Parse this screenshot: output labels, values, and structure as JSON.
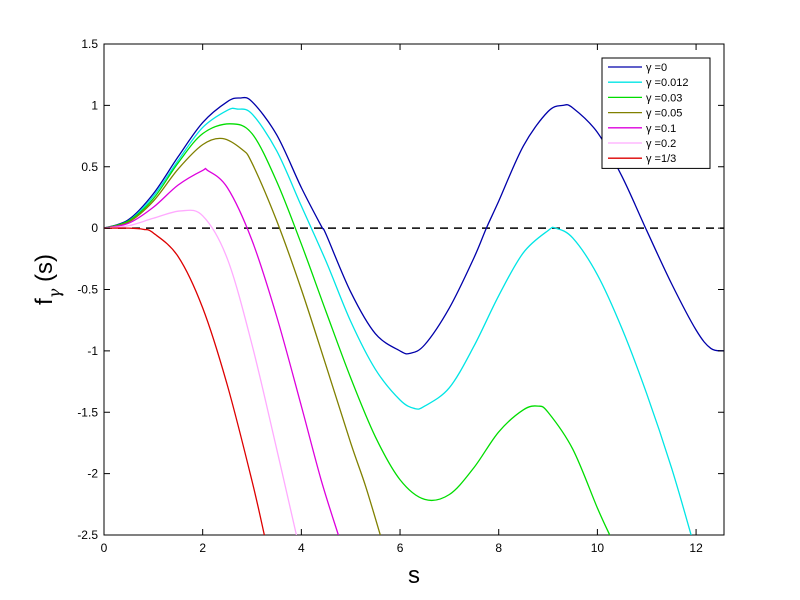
{
  "chart_data": {
    "type": "line",
    "xlabel": "s",
    "ylabel": {
      "main": "f",
      "subscript": "γ",
      "suffix": " (s)"
    },
    "xlim": [
      0,
      12.566
    ],
    "ylim": [
      -2.5,
      1.5
    ],
    "xticks": [
      0,
      2,
      4,
      6,
      8,
      10,
      12
    ],
    "yticks": [
      -2.5,
      -2,
      -1.5,
      -1,
      -0.5,
      0,
      0.5,
      1,
      1.5
    ],
    "xtick_labels": [
      "0",
      "2",
      "4",
      "6",
      "8",
      "10",
      "12"
    ],
    "ytick_labels": [
      "-2.5",
      "-2",
      "-1.5",
      "-1",
      "-0.5",
      "0",
      "0.5",
      "1",
      "1.5"
    ],
    "grid": false,
    "legend_position": "top-right",
    "reference_line": {
      "y": 0,
      "style": "dashed",
      "color": "#000000"
    },
    "series": [
      {
        "name": "γ =0",
        "color": "#0000aa",
        "x": [
          0,
          0.5,
          1,
          1.5,
          2,
          2.5,
          2.75,
          3,
          3.5,
          4,
          4.4,
          4.5,
          5,
          5.5,
          6,
          6.2,
          6.5,
          7,
          7.5,
          7.75,
          8,
          8.5,
          9,
          9.3,
          9.5,
          10,
          10.5,
          11,
          11.5,
          12,
          12.3,
          12.566
        ],
        "y": [
          0,
          0.07,
          0.28,
          0.58,
          0.86,
          1.03,
          1.06,
          1.03,
          0.76,
          0.33,
          0.02,
          -0.05,
          -0.52,
          -0.86,
          -1.0,
          -1.02,
          -0.95,
          -0.65,
          -0.24,
          0.0,
          0.22,
          0.67,
          0.95,
          1.0,
          0.98,
          0.78,
          0.42,
          -0.02,
          -0.45,
          -0.83,
          -0.98,
          -1.0
        ]
      },
      {
        "name": "γ =0.012",
        "color": "#00e5e5",
        "x": [
          0,
          0.5,
          1,
          1.5,
          2,
          2.5,
          2.7,
          3,
          3.5,
          4,
          4.5,
          5,
          5.5,
          6,
          6.3,
          6.5,
          7,
          7.5,
          8,
          8.5,
          9,
          9.15,
          9.5,
          10,
          10.5,
          11,
          11.5,
          11.9
        ],
        "y": [
          0,
          0.06,
          0.26,
          0.55,
          0.82,
          0.96,
          0.97,
          0.93,
          0.63,
          0.18,
          -0.27,
          -0.76,
          -1.15,
          -1.4,
          -1.47,
          -1.45,
          -1.3,
          -0.96,
          -0.55,
          -0.2,
          -0.02,
          0.0,
          -0.08,
          -0.38,
          -0.82,
          -1.35,
          -1.95,
          -2.5
        ]
      },
      {
        "name": "γ =0.03",
        "color": "#00dd00",
        "x": [
          0,
          0.5,
          1,
          1.5,
          2,
          2.55,
          3,
          3.5,
          4,
          4.5,
          5,
          5.5,
          6,
          6.5,
          7,
          7.5,
          8,
          8.5,
          8.8,
          9,
          9.5,
          10,
          10.25
        ],
        "y": [
          0,
          0.06,
          0.24,
          0.53,
          0.77,
          0.85,
          0.77,
          0.38,
          -0.13,
          -0.68,
          -1.22,
          -1.7,
          -2.05,
          -2.21,
          -2.17,
          -1.95,
          -1.66,
          -1.48,
          -1.45,
          -1.5,
          -1.8,
          -2.28,
          -2.5
        ]
      },
      {
        "name": "γ =0.05",
        "color": "#808000",
        "x": [
          0,
          0.5,
          1,
          1.5,
          2,
          2.4,
          2.8,
          3,
          3.5,
          4,
          4.5,
          5,
          5.3,
          5.6
        ],
        "y": [
          0,
          0.05,
          0.22,
          0.48,
          0.68,
          0.73,
          0.64,
          0.53,
          0.06,
          -0.5,
          -1.12,
          -1.75,
          -2.1,
          -2.5
        ]
      },
      {
        "name": "γ =0.1",
        "color": "#dd00dd",
        "x": [
          0,
          0.5,
          1,
          1.5,
          2,
          2.1,
          2.5,
          3,
          3.5,
          4,
          4.4,
          4.75
        ],
        "y": [
          0,
          0.04,
          0.17,
          0.35,
          0.47,
          0.47,
          0.33,
          -0.1,
          -0.72,
          -1.45,
          -2.05,
          -2.5
        ]
      },
      {
        "name": "γ =0.2",
        "color": "#ffaaff",
        "x": [
          0,
          0.5,
          1,
          1.55,
          2,
          2.5,
          3,
          3.5,
          3.9
        ],
        "y": [
          0,
          0.02,
          0.08,
          0.14,
          0.1,
          -0.25,
          -0.95,
          -1.8,
          -2.5
        ]
      },
      {
        "name": "γ =1/3",
        "color": "#dd0000",
        "x": [
          0,
          0.5,
          0.8,
          1,
          1.5,
          2,
          2.5,
          3,
          3.25
        ],
        "y": [
          0,
          0.0,
          -0.01,
          -0.04,
          -0.23,
          -0.65,
          -1.28,
          -2.06,
          -2.5
        ]
      }
    ]
  }
}
